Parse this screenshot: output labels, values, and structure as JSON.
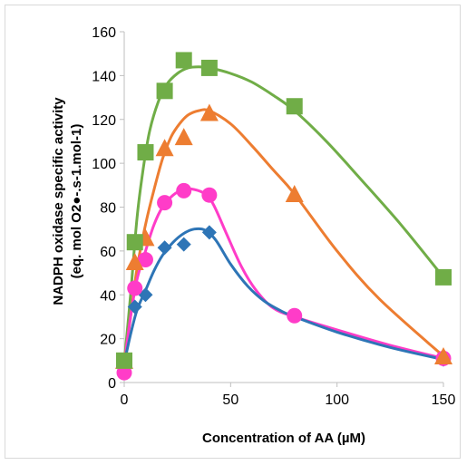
{
  "chart_data": {
    "type": "scatter",
    "xlabel": "Concentration of AA (µM)",
    "ylabel_line1": "NADPH oxidase specific activity",
    "ylabel_line2": "(eq. mol O2●-.s-1.mol-1)",
    "xlim": [
      0,
      150
    ],
    "ylim": [
      0,
      160
    ],
    "x_ticks": [
      0,
      50,
      100,
      150
    ],
    "y_ticks": [
      0,
      20,
      40,
      60,
      80,
      100,
      120,
      140,
      160
    ],
    "grid": false,
    "legend": "none",
    "series": [
      {
        "marker": "square",
        "color": "#70AD47",
        "points": [
          [
            0,
            10
          ],
          [
            5,
            64
          ],
          [
            10,
            105
          ],
          [
            19,
            133
          ],
          [
            28,
            147
          ],
          [
            40,
            143.5
          ],
          [
            80,
            126
          ],
          [
            150,
            48
          ]
        ],
        "curve": [
          [
            0,
            9
          ],
          [
            3,
            40
          ],
          [
            6,
            75
          ],
          [
            9,
            98
          ],
          [
            12,
            115
          ],
          [
            16,
            128
          ],
          [
            20,
            136
          ],
          [
            25,
            141
          ],
          [
            30,
            143.5
          ],
          [
            35,
            144
          ],
          [
            40,
            143.5
          ],
          [
            50,
            141
          ],
          [
            60,
            137
          ],
          [
            70,
            131
          ],
          [
            80,
            124
          ],
          [
            95,
            110
          ],
          [
            110,
            94
          ],
          [
            130,
            72
          ],
          [
            150,
            48
          ]
        ]
      },
      {
        "marker": "triangle",
        "color": "#ED7D31",
        "points": [
          [
            0,
            10
          ],
          [
            5,
            55
          ],
          [
            10,
            66
          ],
          [
            19,
            107
          ],
          [
            28,
            112
          ],
          [
            40,
            123
          ],
          [
            80,
            86
          ],
          [
            150,
            12
          ]
        ],
        "curve": [
          [
            0,
            9
          ],
          [
            3,
            30
          ],
          [
            6,
            52
          ],
          [
            10,
            72
          ],
          [
            14,
            88
          ],
          [
            18,
            102
          ],
          [
            22,
            112
          ],
          [
            26,
            118
          ],
          [
            30,
            122
          ],
          [
            35,
            124
          ],
          [
            40,
            124
          ],
          [
            50,
            118
          ],
          [
            60,
            108
          ],
          [
            70,
            97
          ],
          [
            80,
            86
          ],
          [
            100,
            60
          ],
          [
            120,
            38
          ],
          [
            150,
            12
          ]
        ]
      },
      {
        "marker": "circle",
        "color": "#FF3CC8",
        "points": [
          [
            0,
            4.5
          ],
          [
            5,
            43
          ],
          [
            10,
            56
          ],
          [
            19,
            82
          ],
          [
            28,
            87.5
          ],
          [
            40,
            85.5
          ],
          [
            80,
            30.5
          ],
          [
            150,
            11
          ]
        ],
        "curve": [
          [
            0,
            8
          ],
          [
            3,
            30
          ],
          [
            6,
            47
          ],
          [
            10,
            60
          ],
          [
            14,
            72
          ],
          [
            18,
            80
          ],
          [
            23,
            85.5
          ],
          [
            28,
            88
          ],
          [
            33,
            88
          ],
          [
            38,
            86
          ],
          [
            42,
            81
          ],
          [
            48,
            68
          ],
          [
            55,
            53
          ],
          [
            62,
            42
          ],
          [
            70,
            34
          ],
          [
            80,
            30
          ],
          [
            100,
            24
          ],
          [
            125,
            17
          ],
          [
            150,
            11
          ]
        ]
      },
      {
        "marker": "diamond",
        "color": "#2E75B6",
        "points": [
          [
            0,
            9
          ],
          [
            5,
            34.5
          ],
          [
            10,
            40
          ],
          [
            19,
            61.5
          ],
          [
            28,
            63
          ],
          [
            40,
            68.5
          ],
          [
            80,
            30.5
          ],
          [
            150,
            10.5
          ]
        ],
        "curve": [
          [
            0,
            9
          ],
          [
            3,
            22
          ],
          [
            6,
            33
          ],
          [
            10,
            42
          ],
          [
            14,
            51
          ],
          [
            18,
            58
          ],
          [
            23,
            64
          ],
          [
            28,
            68
          ],
          [
            33,
            70
          ],
          [
            38,
            69.5
          ],
          [
            43,
            65
          ],
          [
            50,
            54
          ],
          [
            58,
            44
          ],
          [
            66,
            37
          ],
          [
            74,
            32.5
          ],
          [
            80,
            30
          ],
          [
            100,
            23
          ],
          [
            125,
            16
          ],
          [
            150,
            10.5
          ]
        ]
      }
    ]
  }
}
